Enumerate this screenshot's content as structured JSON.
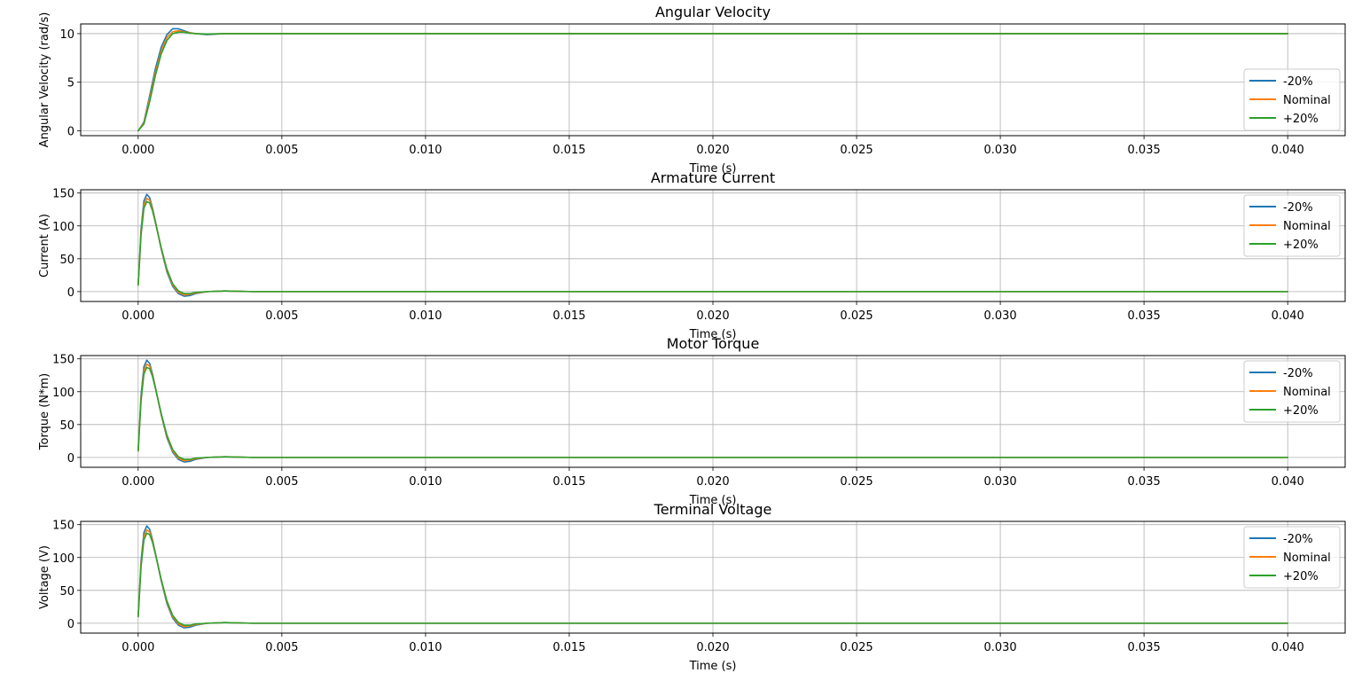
{
  "chart_data": [
    {
      "type": "line",
      "title": "Angular Velocity",
      "xlabel": "Time (s)",
      "ylabel": "Angular Velocity (rad/s)",
      "xlim": [
        -0.002,
        0.042
      ],
      "ylim": [
        -0.5,
        11
      ],
      "xticks": [
        "0.000",
        "0.005",
        "0.010",
        "0.015",
        "0.020",
        "0.025",
        "0.030",
        "0.035",
        "0.040"
      ],
      "yticks": [
        "0",
        "5",
        "10"
      ],
      "grid": true,
      "legend_position": "lower-right",
      "series": [
        {
          "name": "-20%",
          "color": "#1f77b4",
          "x": [
            0,
            0.0002,
            0.0004,
            0.0006,
            0.0008,
            0.001,
            0.0012,
            0.0014,
            0.0016,
            0.0018,
            0.002,
            0.0024,
            0.003,
            0.004,
            0.04
          ],
          "y": [
            0,
            0.9,
            3.6,
            6.4,
            8.6,
            9.9,
            10.5,
            10.5,
            10.3,
            10.1,
            10.0,
            9.9,
            10.0,
            10.0,
            10.0
          ]
        },
        {
          "name": "Nominal",
          "color": "#ff7f0e",
          "x": [
            0,
            0.0002,
            0.0004,
            0.0006,
            0.0008,
            0.001,
            0.0012,
            0.0014,
            0.0016,
            0.0018,
            0.002,
            0.0024,
            0.003,
            0.004,
            0.04
          ],
          "y": [
            0,
            0.8,
            3.3,
            6.0,
            8.2,
            9.6,
            10.2,
            10.3,
            10.2,
            10.1,
            10.0,
            9.95,
            10.0,
            10.0,
            10.0
          ]
        },
        {
          "name": "+20%",
          "color": "#2ca02c",
          "x": [
            0,
            0.0002,
            0.0004,
            0.0006,
            0.0008,
            0.001,
            0.0012,
            0.0014,
            0.0016,
            0.0018,
            0.002,
            0.0024,
            0.003,
            0.004,
            0.04
          ],
          "y": [
            0,
            0.7,
            3.0,
            5.7,
            7.9,
            9.3,
            10.0,
            10.15,
            10.15,
            10.05,
            10.0,
            9.97,
            10.0,
            10.0,
            10.0
          ]
        }
      ]
    },
    {
      "type": "line",
      "title": "Armature Current",
      "xlabel": "Time (s)",
      "ylabel": "Current (A)",
      "xlim": [
        -0.002,
        0.042
      ],
      "ylim": [
        -15,
        155
      ],
      "xticks": [
        "0.000",
        "0.005",
        "0.010",
        "0.015",
        "0.020",
        "0.025",
        "0.030",
        "0.035",
        "0.040"
      ],
      "yticks": [
        "0",
        "50",
        "100",
        "150"
      ],
      "grid": true,
      "legend_position": "upper-right",
      "series": [
        {
          "name": "-20%",
          "color": "#1f77b4",
          "x": [
            0,
            0.0001,
            0.0002,
            0.0003,
            0.0004,
            0.0005,
            0.0006,
            0.0008,
            0.001,
            0.0012,
            0.0014,
            0.0016,
            0.0018,
            0.002,
            0.0024,
            0.003,
            0.004,
            0.04
          ],
          "y": [
            10,
            95,
            138,
            148,
            143,
            127,
            107,
            65,
            30,
            8,
            -3,
            -7,
            -6,
            -3,
            0,
            1,
            0,
            0
          ]
        },
        {
          "name": "Nominal",
          "color": "#ff7f0e",
          "x": [
            0,
            0.0001,
            0.0002,
            0.0003,
            0.0004,
            0.0005,
            0.0006,
            0.0008,
            0.001,
            0.0012,
            0.0014,
            0.0016,
            0.0018,
            0.002,
            0.0024,
            0.003,
            0.004,
            0.04
          ],
          "y": [
            10,
            90,
            132,
            142,
            139,
            125,
            106,
            66,
            32,
            10,
            -1,
            -5,
            -4,
            -2,
            0,
            1,
            0,
            0
          ]
        },
        {
          "name": "+20%",
          "color": "#2ca02c",
          "x": [
            0,
            0.0001,
            0.0002,
            0.0003,
            0.0004,
            0.0005,
            0.0006,
            0.0008,
            0.001,
            0.0012,
            0.0014,
            0.0016,
            0.0018,
            0.002,
            0.0024,
            0.003,
            0.004,
            0.04
          ],
          "y": [
            10,
            86,
            127,
            137,
            135,
            123,
            105,
            67,
            34,
            12,
            1,
            -3,
            -3,
            -1,
            0,
            1,
            0,
            0
          ]
        }
      ]
    },
    {
      "type": "line",
      "title": "Motor Torque",
      "xlabel": "Time (s)",
      "ylabel": "Torque (N*m)",
      "xlim": [
        -0.002,
        0.042
      ],
      "ylim": [
        -15,
        155
      ],
      "xticks": [
        "0.000",
        "0.005",
        "0.010",
        "0.015",
        "0.020",
        "0.025",
        "0.030",
        "0.035",
        "0.040"
      ],
      "yticks": [
        "0",
        "50",
        "100",
        "150"
      ],
      "grid": true,
      "legend_position": "upper-right",
      "series": [
        {
          "name": "-20%",
          "color": "#1f77b4",
          "x": [
            0,
            0.0001,
            0.0002,
            0.0003,
            0.0004,
            0.0005,
            0.0006,
            0.0008,
            0.001,
            0.0012,
            0.0014,
            0.0016,
            0.0018,
            0.002,
            0.0024,
            0.003,
            0.004,
            0.04
          ],
          "y": [
            10,
            95,
            138,
            148,
            143,
            127,
            107,
            65,
            30,
            8,
            -3,
            -7,
            -6,
            -3,
            0,
            1,
            0,
            0
          ]
        },
        {
          "name": "Nominal",
          "color": "#ff7f0e",
          "x": [
            0,
            0.0001,
            0.0002,
            0.0003,
            0.0004,
            0.0005,
            0.0006,
            0.0008,
            0.001,
            0.0012,
            0.0014,
            0.0016,
            0.0018,
            0.002,
            0.0024,
            0.003,
            0.004,
            0.04
          ],
          "y": [
            10,
            90,
            132,
            142,
            139,
            125,
            106,
            66,
            32,
            10,
            -1,
            -5,
            -4,
            -2,
            0,
            1,
            0,
            0
          ]
        },
        {
          "name": "+20%",
          "color": "#2ca02c",
          "x": [
            0,
            0.0001,
            0.0002,
            0.0003,
            0.0004,
            0.0005,
            0.0006,
            0.0008,
            0.001,
            0.0012,
            0.0014,
            0.0016,
            0.0018,
            0.002,
            0.0024,
            0.003,
            0.004,
            0.04
          ],
          "y": [
            10,
            86,
            127,
            137,
            135,
            123,
            105,
            67,
            34,
            12,
            1,
            -3,
            -3,
            -1,
            0,
            1,
            0,
            0
          ]
        }
      ]
    },
    {
      "type": "line",
      "title": "Terminal Voltage",
      "xlabel": "Time (s)",
      "ylabel": "Voltage (V)",
      "xlim": [
        -0.002,
        0.042
      ],
      "ylim": [
        -15,
        155
      ],
      "xticks": [
        "0.000",
        "0.005",
        "0.010",
        "0.015",
        "0.020",
        "0.025",
        "0.030",
        "0.035",
        "0.040"
      ],
      "yticks": [
        "0",
        "50",
        "100",
        "150"
      ],
      "grid": true,
      "legend_position": "upper-right",
      "series": [
        {
          "name": "-20%",
          "color": "#1f77b4",
          "x": [
            0,
            0.0001,
            0.0002,
            0.0003,
            0.0004,
            0.0005,
            0.0006,
            0.0008,
            0.001,
            0.0012,
            0.0014,
            0.0016,
            0.0018,
            0.002,
            0.0024,
            0.003,
            0.004,
            0.04
          ],
          "y": [
            10,
            95,
            138,
            148,
            143,
            127,
            107,
            65,
            30,
            8,
            -3,
            -7,
            -6,
            -3,
            0,
            1,
            0,
            0
          ]
        },
        {
          "name": "Nominal",
          "color": "#ff7f0e",
          "x": [
            0,
            0.0001,
            0.0002,
            0.0003,
            0.0004,
            0.0005,
            0.0006,
            0.0008,
            0.001,
            0.0012,
            0.0014,
            0.0016,
            0.0018,
            0.002,
            0.0024,
            0.003,
            0.004,
            0.04
          ],
          "y": [
            10,
            90,
            132,
            142,
            139,
            125,
            106,
            66,
            32,
            10,
            -1,
            -5,
            -4,
            -2,
            0,
            1,
            0,
            0
          ]
        },
        {
          "name": "+20%",
          "color": "#2ca02c",
          "x": [
            0,
            0.0001,
            0.0002,
            0.0003,
            0.0004,
            0.0005,
            0.0006,
            0.0008,
            0.001,
            0.0012,
            0.0014,
            0.0016,
            0.0018,
            0.002,
            0.0024,
            0.003,
            0.004,
            0.04
          ],
          "y": [
            10,
            86,
            127,
            137,
            135,
            123,
            105,
            67,
            34,
            12,
            1,
            -3,
            -3,
            -1,
            0,
            1,
            0,
            0
          ]
        }
      ]
    }
  ]
}
